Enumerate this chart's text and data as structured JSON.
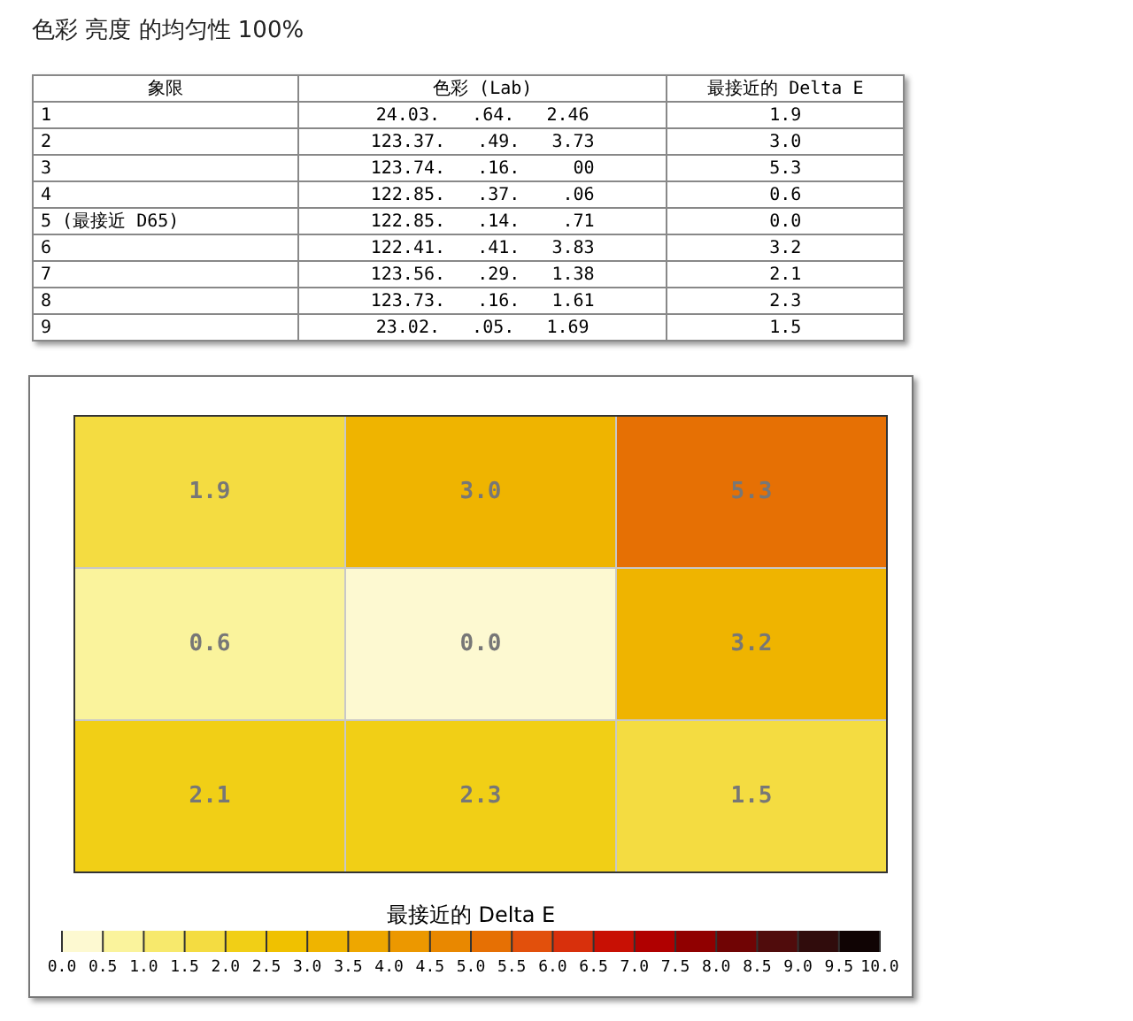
{
  "chart_data": {
    "type": "heatmap",
    "title": "色彩 亮度 的均匀性 100%",
    "categories": [
      null,
      null,
      null
    ],
    "y_categories": [
      null,
      null,
      null
    ],
    "cells": [
      [
        1.9,
        3.0,
        5.3
      ],
      [
        0.6,
        0.0,
        3.2
      ],
      [
        2.1,
        2.3,
        1.5
      ]
    ],
    "cell_labels": [
      [
        "1.9",
        "3.0",
        "5.3"
      ],
      [
        "0.6",
        "0.0",
        "3.2"
      ],
      [
        "2.1",
        "2.3",
        "1.5"
      ]
    ],
    "grid": true,
    "tick_labels": false,
    "clabel": "最接近的 Delta E",
    "clim": [
      0,
      10
    ],
    "cticks": [
      {
        "value": 0,
        "label": "0.0"
      },
      {
        "value": 0.5,
        "label": "0.5"
      },
      {
        "value": 1,
        "label": "1.0"
      },
      {
        "value": 1.5,
        "label": "1.5"
      },
      {
        "value": 2,
        "label": "2.0"
      },
      {
        "value": 2.5,
        "label": "2.5"
      },
      {
        "value": 3,
        "label": "3.0"
      },
      {
        "value": 3.5,
        "label": "3.5"
      },
      {
        "value": 4,
        "label": "4.0"
      },
      {
        "value": 4.5,
        "label": "4.5"
      },
      {
        "value": 5,
        "label": "5.0"
      },
      {
        "value": 5.5,
        "label": "5.5"
      },
      {
        "value": 6,
        "label": "6.0"
      },
      {
        "value": 6.5,
        "label": "6.5"
      },
      {
        "value": 7,
        "label": "7.0"
      },
      {
        "value": 7.5,
        "label": "7.5"
      },
      {
        "value": 8,
        "label": "8.0"
      },
      {
        "value": 8.5,
        "label": "8.5"
      },
      {
        "value": 9,
        "label": "9.0"
      },
      {
        "value": 9.5,
        "label": "9.5"
      },
      {
        "value": 10,
        "label": "10.0"
      }
    ],
    "annotations": [
      "象限",
      "色彩 (Lab)",
      "最接近的 Delta E",
      "1",
      "24.03.   .64.   2.46",
      "2",
      "123.37.   .49.   3.73",
      "3",
      "123.74.   .16.     00",
      "4",
      "122.85.   .37.    .06",
      "5 (最接近 D65)",
      "122.85.   .14.    .71",
      "6",
      "122.41.   .41.   3.83",
      "7",
      "123.56.   .29.   1.38",
      "8",
      "123.73.   .16.   1.61",
      "9",
      "23.02.   .05.   1.69"
    ]
  }
}
